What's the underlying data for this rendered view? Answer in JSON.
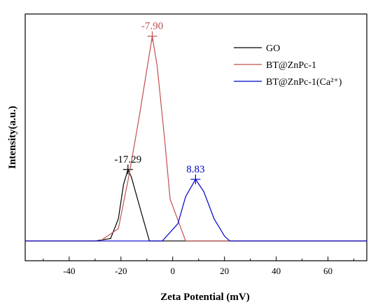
{
  "chart_data": {
    "type": "line",
    "xlabel": "Zeta Potential (mV)",
    "ylabel": "Intensity(a.u.)",
    "xlim": [
      -57,
      75
    ],
    "xticks": [
      -40,
      -20,
      0,
      20,
      40,
      60
    ],
    "ylim": [
      0,
      1.0
    ],
    "baseline": 0.08,
    "legend_position": "top-right",
    "grid": false,
    "series": [
      {
        "name": "GO",
        "color": "#000000",
        "peak_x": -17.29,
        "peak_label": "-17.29",
        "points": [
          [
            -30,
            0.08
          ],
          [
            -24,
            0.09
          ],
          [
            -21,
            0.17
          ],
          [
            -19,
            0.31
          ],
          [
            -17.29,
            0.37
          ],
          [
            -16,
            0.34
          ],
          [
            -12,
            0.19
          ],
          [
            -9,
            0.08
          ]
        ]
      },
      {
        "name": "BT@ZnPc-1",
        "color": "#c0504d",
        "peak_x": -7.9,
        "peak_label": "-7.90",
        "points": [
          [
            -28,
            0.08
          ],
          [
            -21,
            0.13
          ],
          [
            -17,
            0.34
          ],
          [
            -13,
            0.58
          ],
          [
            -7.9,
            0.91
          ],
          [
            -6,
            0.79
          ],
          [
            -3,
            0.48
          ],
          [
            -1,
            0.25
          ],
          [
            5,
            0.08
          ],
          [
            8,
            0.08
          ]
        ]
      },
      {
        "name": "BT@ZnPc-1(Ca²⁺)",
        "color": "#0000cd",
        "peak_x": 8.83,
        "peak_label": "8.83",
        "points": [
          [
            -4,
            0.08
          ],
          [
            2,
            0.15
          ],
          [
            5,
            0.26
          ],
          [
            8.83,
            0.33
          ],
          [
            12,
            0.28
          ],
          [
            16,
            0.17
          ],
          [
            20,
            0.1
          ],
          [
            22,
            0.08
          ]
        ]
      }
    ]
  }
}
